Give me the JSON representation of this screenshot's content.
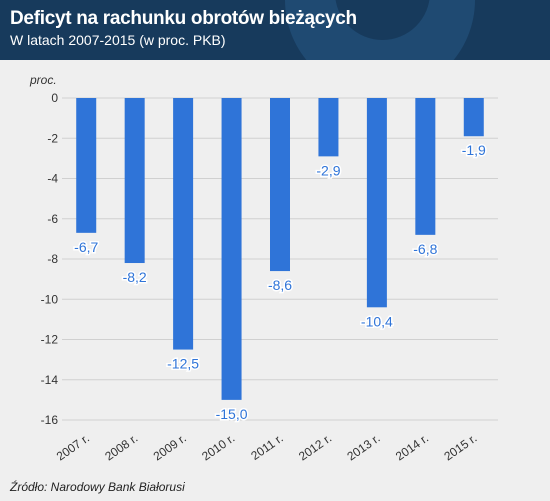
{
  "header": {
    "title": "Deficyt na rachunku obrotów bieżących",
    "subtitle": "W latach 2007-2015 (w proc. PKB)"
  },
  "source": "Źródło: Narodowy Bank Białorusi",
  "chart_data": {
    "type": "bar",
    "title": "Deficyt na rachunku obrotów bieżących",
    "subtitle": "W latach 2007-2015 (w proc. PKB)",
    "unit_label": "proc.",
    "categories": [
      "2007 r.",
      "2008 r.",
      "2009 r.",
      "2010 r.",
      "2011 r.",
      "2012 r.",
      "2013 r.",
      "2014 r.",
      "2015 r."
    ],
    "values": [
      -6.7,
      -8.2,
      -12.5,
      -15.0,
      -8.6,
      -2.9,
      -10.4,
      -6.8,
      -1.9
    ],
    "value_labels": [
      "-6,7",
      "-8,2",
      "-12,5",
      "-15,0",
      "-8,6",
      "-2,9",
      "-10,4",
      "-6,8",
      "-1,9"
    ],
    "y_ticks": [
      0,
      -2,
      -4,
      -6,
      -8,
      -10,
      -12,
      -14,
      -16
    ],
    "y_tick_labels": [
      "0",
      "-2",
      "-4",
      "-6",
      "-8",
      "-10",
      "-12",
      "-14",
      "-16"
    ],
    "ylim": [
      -16,
      0
    ],
    "grid": true,
    "colors": {
      "bar": "#2f74d8",
      "label": "#2f74d8",
      "grid": "#d0d0d0",
      "header": "#173a5c"
    }
  }
}
